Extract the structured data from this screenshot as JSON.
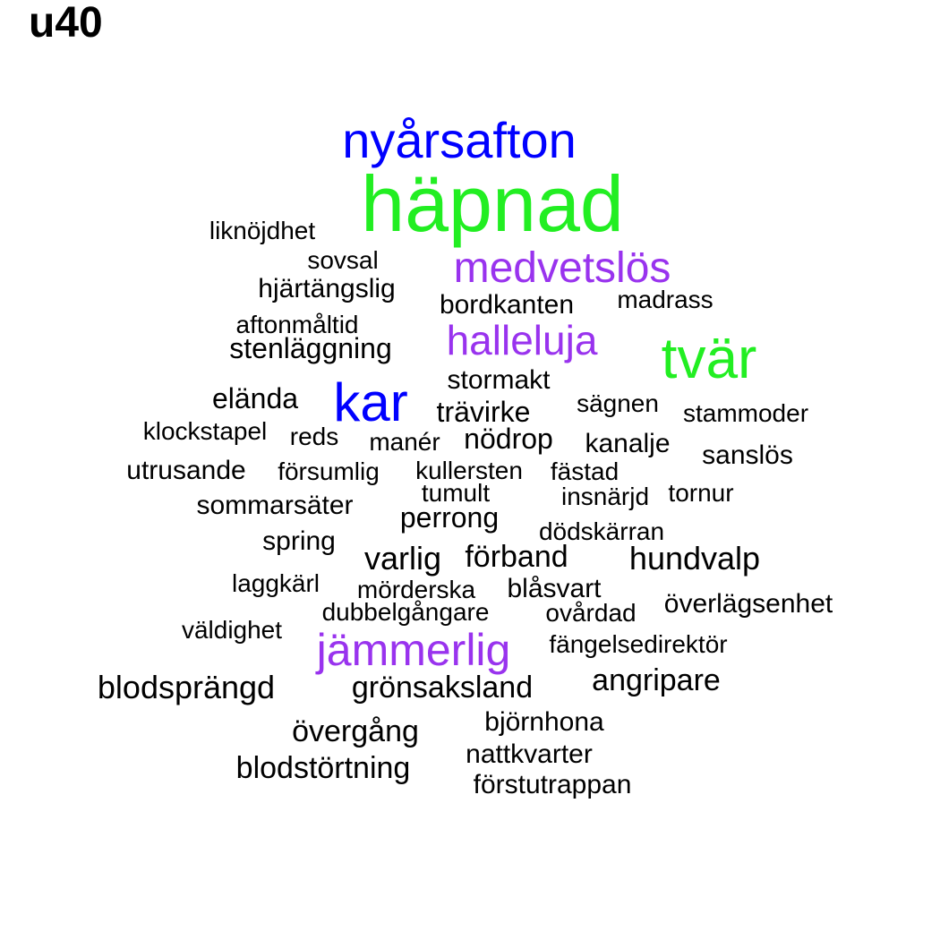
{
  "title": "u40",
  "colors": {
    "black": "#000000",
    "blue": "#0000ff",
    "green": "#22ee22",
    "purple": "#9933ee"
  },
  "words": [
    {
      "text": "häpnad",
      "color": "green"
    },
    {
      "text": "nyårsafton",
      "color": "blue"
    },
    {
      "text": "medvetslös",
      "color": "purple"
    },
    {
      "text": "tvär",
      "color": "green"
    },
    {
      "text": "halleluja",
      "color": "purple"
    },
    {
      "text": "kar",
      "color": "blue"
    },
    {
      "text": "jämmerlig",
      "color": "purple"
    },
    {
      "text": "liknöjdhet",
      "color": "black"
    },
    {
      "text": "sovsal",
      "color": "black"
    },
    {
      "text": "hjärtängslig",
      "color": "black"
    },
    {
      "text": "bordkanten",
      "color": "black"
    },
    {
      "text": "madrass",
      "color": "black"
    },
    {
      "text": "aftonmåltid",
      "color": "black"
    },
    {
      "text": "stenläggning",
      "color": "black"
    },
    {
      "text": "stormakt",
      "color": "black"
    },
    {
      "text": "eländа",
      "color": "black"
    },
    {
      "text": "trävirke",
      "color": "black"
    },
    {
      "text": "sägnen",
      "color": "black"
    },
    {
      "text": "stammoder",
      "color": "black"
    },
    {
      "text": "klockstapel",
      "color": "black"
    },
    {
      "text": "reds",
      "color": "black"
    },
    {
      "text": "manér",
      "color": "black"
    },
    {
      "text": "nödrop",
      "color": "black"
    },
    {
      "text": "kanalje",
      "color": "black"
    },
    {
      "text": "sanslös",
      "color": "black"
    },
    {
      "text": "utrusande",
      "color": "black"
    },
    {
      "text": "försumlig",
      "color": "black"
    },
    {
      "text": "kullersten",
      "color": "black"
    },
    {
      "text": "fästad",
      "color": "black"
    },
    {
      "text": "tumult",
      "color": "black"
    },
    {
      "text": "insnärjd",
      "color": "black"
    },
    {
      "text": "tornur",
      "color": "black"
    },
    {
      "text": "sommarsäter",
      "color": "black"
    },
    {
      "text": "perrong",
      "color": "black"
    },
    {
      "text": "dödskärran",
      "color": "black"
    },
    {
      "text": "spring",
      "color": "black"
    },
    {
      "text": "varlig",
      "color": "black"
    },
    {
      "text": "förband",
      "color": "black"
    },
    {
      "text": "hundvalp",
      "color": "black"
    },
    {
      "text": "laggkärl",
      "color": "black"
    },
    {
      "text": "mörderska",
      "color": "black"
    },
    {
      "text": "blåsvart",
      "color": "black"
    },
    {
      "text": "överlägsenhet",
      "color": "black"
    },
    {
      "text": "dubbelgångare",
      "color": "black"
    },
    {
      "text": "ovårdad",
      "color": "black"
    },
    {
      "text": "väldighet",
      "color": "black"
    },
    {
      "text": "fängelsedirektör",
      "color": "black"
    },
    {
      "text": "blodsprängd",
      "color": "black"
    },
    {
      "text": "grönsaksland",
      "color": "black"
    },
    {
      "text": "angripare",
      "color": "black"
    },
    {
      "text": "björnhona",
      "color": "black"
    },
    {
      "text": "övergång",
      "color": "black"
    },
    {
      "text": "nattkvarter",
      "color": "black"
    },
    {
      "text": "blodstörtning",
      "color": "black"
    },
    {
      "text": "förstutrappan",
      "color": "black"
    }
  ]
}
